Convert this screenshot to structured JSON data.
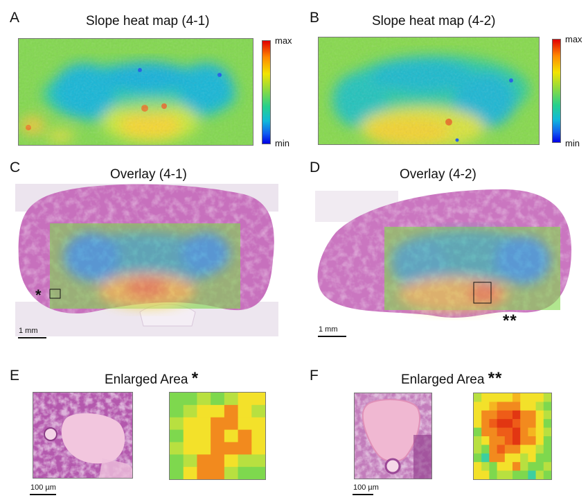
{
  "panels": {
    "A": {
      "label": "A",
      "title": "Slope heat map (4-1)"
    },
    "B": {
      "label": "B",
      "title": "Slope heat map (4-2)"
    },
    "C": {
      "label": "C",
      "title": "Overlay (4-1)",
      "marker": "*",
      "scale_bar": "1 mm"
    },
    "D": {
      "label": "D",
      "title": "Overlay (4-2)",
      "marker": "**",
      "scale_bar": "1 mm"
    },
    "E": {
      "label": "E",
      "title": "Enlarged Area",
      "title_marker": "*",
      "scale_bar": "100 µm"
    },
    "F": {
      "label": "F",
      "title": "Enlarged Area",
      "title_marker": "**",
      "scale_bar": "100 µm"
    }
  },
  "colorbar": {
    "max_label": "max",
    "min_label": "min"
  },
  "colors": {
    "tissue": "#c76bbd",
    "tissue_light": "#e6b2de",
    "heat_high": "#e83a12",
    "heat_mid": "#f2e400",
    "heat_low": "#1a9cf0",
    "heat_base": "#7ed84e"
  }
}
